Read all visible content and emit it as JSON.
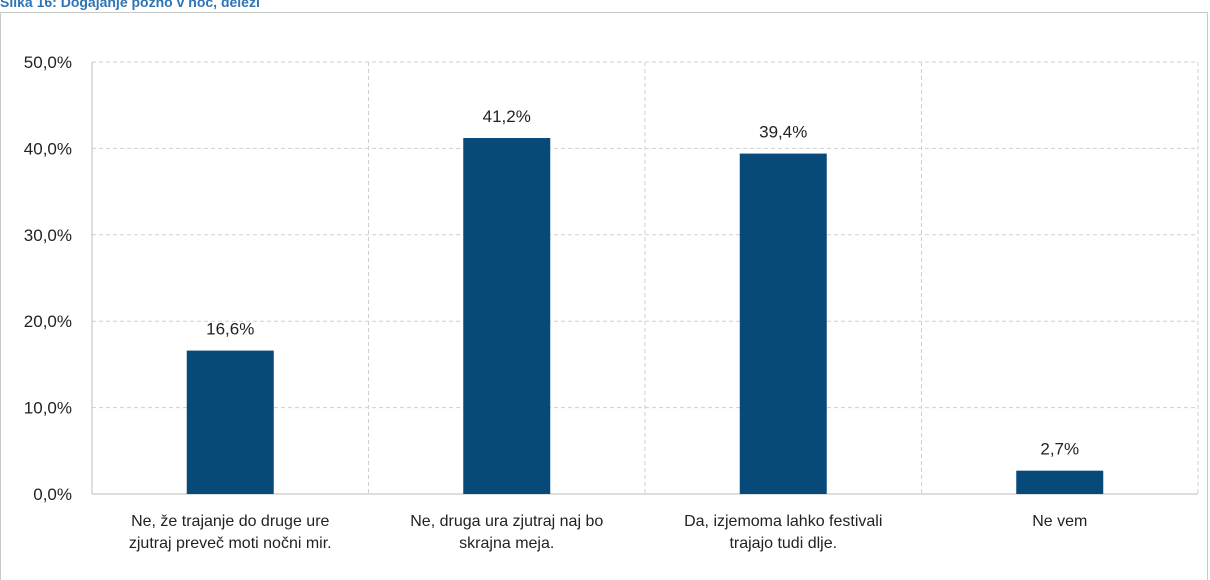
{
  "caption": "Slika 16: Dogajanje pozno v noč, deleži",
  "chart_data": {
    "type": "bar",
    "categories": [
      [
        "Ne, že trajanje do druge ure",
        "zjutraj preveč moti nočni mir."
      ],
      [
        "Ne, druga ura zjutraj naj bo",
        "skrajna meja."
      ],
      [
        "Da, izjemoma lahko festivali",
        "trajajo tudi dlje."
      ],
      [
        "Ne vem"
      ]
    ],
    "values": [
      16.6,
      41.2,
      39.4,
      2.7
    ],
    "data_labels": [
      "16,6%",
      "41,2%",
      "39,4%",
      "2,7%"
    ],
    "ylim": [
      0,
      50
    ],
    "yticks": [
      0,
      10,
      20,
      30,
      40,
      50
    ],
    "ytick_labels": [
      "0,0%",
      "10,0%",
      "20,0%",
      "30,0%",
      "40,0%",
      "50,0%"
    ],
    "grid": true,
    "bar_color": "#074a7a",
    "grid_color": "#cfcfcf"
  }
}
